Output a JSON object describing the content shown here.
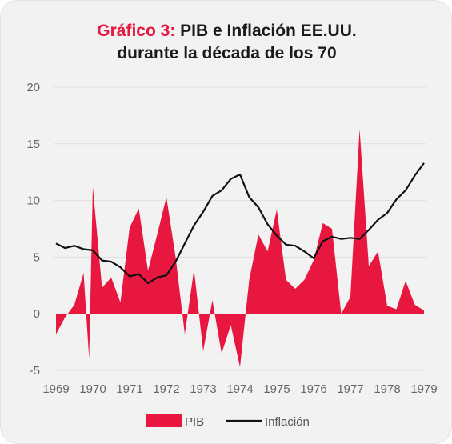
{
  "header": {
    "title_prefix": "Gráfico 3:",
    "title_line1": "PIB e Inflación EE.UU.",
    "title_line2": "durante la década de los 70"
  },
  "chart_data": {
    "type": "area",
    "x_ticks": [
      "1969",
      "1970",
      "1971",
      "1972",
      "1973",
      "1974",
      "1975",
      "1976",
      "1977",
      "1978",
      "1979"
    ],
    "x_range": [
      1969.0,
      1979.0
    ],
    "y_ticks": [
      "20",
      "15",
      "10",
      "5",
      "0",
      "-5"
    ],
    "ylim": [
      -5,
      20
    ],
    "grid": true,
    "legend_position": "bottom",
    "colors": {
      "pib": "#e8173f",
      "inflation": "#111111",
      "grid": "#dddddd",
      "title_accent": "#e8173f"
    },
    "series": [
      {
        "name": "PIB",
        "type": "area",
        "x": [
          1969.0,
          1969.25,
          1969.5,
          1969.75,
          1969.9,
          1970.0,
          1970.25,
          1970.5,
          1970.75,
          1971.0,
          1971.25,
          1971.5,
          1971.75,
          1972.0,
          1972.25,
          1972.5,
          1972.75,
          1973.0,
          1973.25,
          1973.5,
          1973.75,
          1974.0,
          1974.25,
          1974.5,
          1974.75,
          1975.0,
          1975.25,
          1975.5,
          1975.75,
          1976.0,
          1976.25,
          1976.5,
          1976.75,
          1977.0,
          1977.25,
          1977.5,
          1977.75,
          1978.0,
          1978.25,
          1978.5,
          1978.75,
          1979.0
        ],
        "values": [
          -1.8,
          -0.3,
          0.8,
          3.6,
          -4.0,
          11.2,
          2.3,
          3.2,
          1.0,
          7.6,
          9.3,
          3.8,
          7.0,
          10.3,
          5.0,
          -1.8,
          3.9,
          -3.3,
          1.2,
          -3.5,
          -1.0,
          -4.7,
          3.0,
          7.0,
          5.5,
          9.2,
          3.0,
          2.2,
          3.0,
          4.7,
          8.0,
          7.5,
          0.0,
          1.5,
          16.3,
          4.2,
          5.5,
          0.7,
          0.4,
          2.9,
          0.8,
          0.3
        ]
      },
      {
        "name": "Inflación",
        "type": "line",
        "x": [
          1969.0,
          1969.25,
          1969.5,
          1969.75,
          1970.0,
          1970.25,
          1970.5,
          1970.75,
          1971.0,
          1971.25,
          1971.5,
          1971.75,
          1972.0,
          1972.25,
          1972.5,
          1972.75,
          1973.0,
          1973.25,
          1973.5,
          1973.75,
          1974.0,
          1974.25,
          1974.5,
          1974.75,
          1975.0,
          1975.25,
          1975.5,
          1975.75,
          1976.0,
          1976.25,
          1976.5,
          1976.75,
          1977.0,
          1977.25,
          1977.5,
          1977.75,
          1978.0,
          1978.25,
          1978.5,
          1978.75,
          1979.0
        ],
        "values": [
          6.2,
          5.8,
          6.0,
          5.7,
          5.6,
          4.7,
          4.6,
          4.1,
          3.3,
          3.5,
          2.7,
          3.2,
          3.4,
          4.6,
          6.2,
          7.8,
          9.0,
          10.4,
          10.9,
          11.9,
          12.3,
          10.3,
          9.4,
          7.9,
          6.9,
          6.1,
          6.0,
          5.5,
          4.9,
          6.4,
          6.8,
          6.6,
          6.7,
          6.6,
          7.4,
          8.3,
          8.9,
          10.1,
          10.9,
          12.2,
          13.3
        ]
      }
    ]
  }
}
